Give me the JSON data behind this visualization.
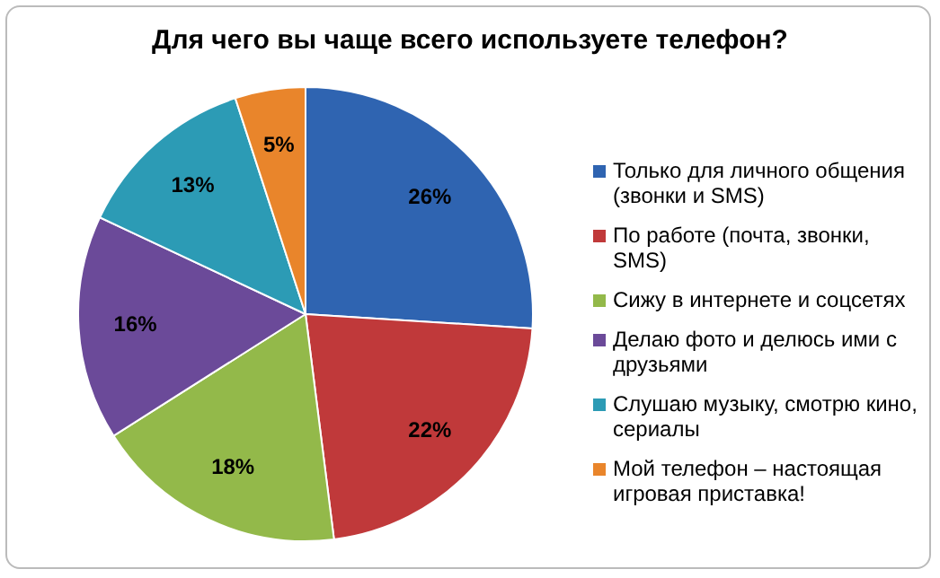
{
  "chart_data": {
    "type": "pie",
    "title": "Для чего вы чаще всего используете телефон?",
    "categories": [
      "Только для личного общения (звонки и SMS)",
      "По работе (почта, звонки, SMS)",
      "Сижу в интернете и соцсетях",
      "Делаю фото и делюсь ими с друзьями",
      "Слушаю музыку, смотрю кино, сериалы",
      "Мой телефон – настоящая игровая приставка!"
    ],
    "values": [
      26,
      22,
      18,
      16,
      13,
      5
    ],
    "value_labels": [
      "26%",
      "22%",
      "18%",
      "16%",
      "13%",
      "5%"
    ],
    "colors": [
      "#2f64b1",
      "#c0393a",
      "#93b94a",
      "#6b4a99",
      "#2c9bb5",
      "#e9852b"
    ],
    "legend": "right"
  }
}
